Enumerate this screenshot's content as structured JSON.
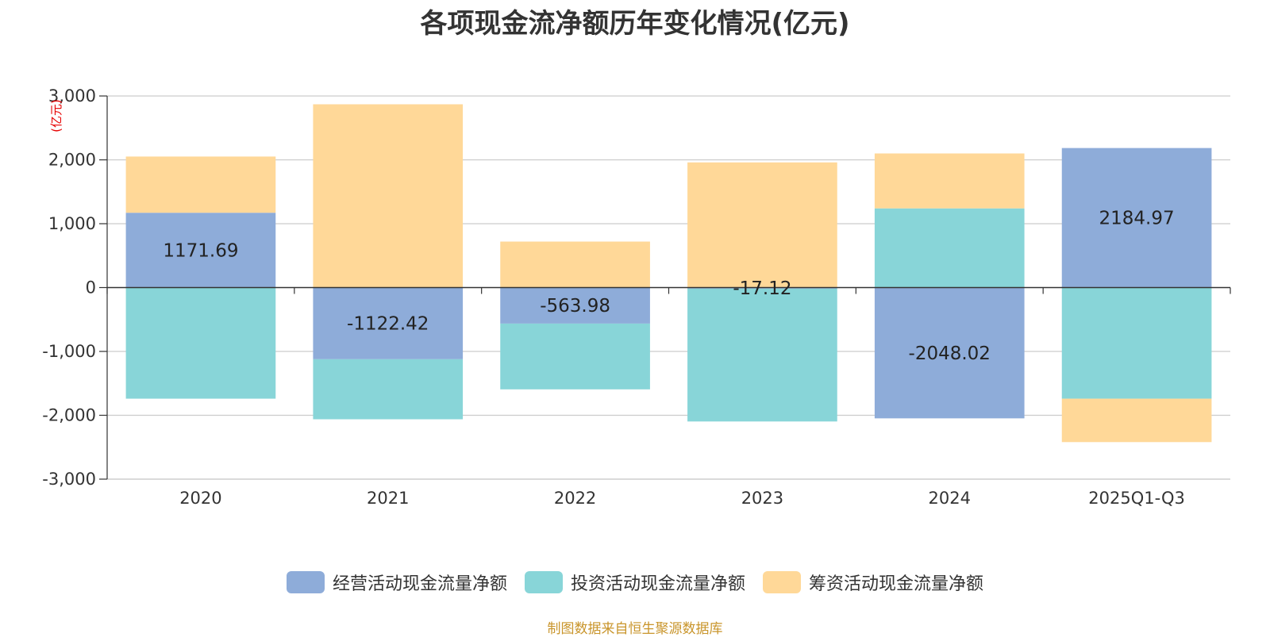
{
  "chart_data": {
    "type": "bar",
    "stacked": true,
    "title": "各项现金流净额历年变化情况(亿元)",
    "unit": "(亿元)",
    "categories": [
      "2020",
      "2021",
      "2022",
      "2023",
      "2024",
      "2025Q1-Q3"
    ],
    "ylim": [
      -3000,
      3000
    ],
    "yticks": [
      3000,
      2000,
      1000,
      0,
      -1000,
      -2000,
      -3000
    ],
    "ytick_labels": [
      "3,000",
      "2,000",
      "1,000",
      "0",
      "-1,000",
      "-2,000",
      "-3,000"
    ],
    "grid": true,
    "legend_position": "bottom-center",
    "series": [
      {
        "name": "经营活动现金流量净额",
        "color": "#8eacd9",
        "values": [
          1171.69,
          -1122.42,
          -563.98,
          -17.12,
          -2048.02,
          2184.97
        ],
        "labels": [
          "1171.69",
          "-1122.42",
          "-563.98",
          "-17.12",
          "-2048.02",
          "2184.97"
        ]
      },
      {
        "name": "投资活动现金流量净额",
        "color": "#88d5d8",
        "values": [
          -1740,
          -940,
          -1030,
          -2080,
          1240,
          -1740
        ]
      },
      {
        "name": "筹资活动现金流量净额",
        "color": "#ffd898",
        "values": [
          880,
          2870,
          720,
          1960,
          860,
          -680
        ]
      }
    ]
  },
  "footer": {
    "source": "制图数据来自恒生聚源数据库"
  }
}
